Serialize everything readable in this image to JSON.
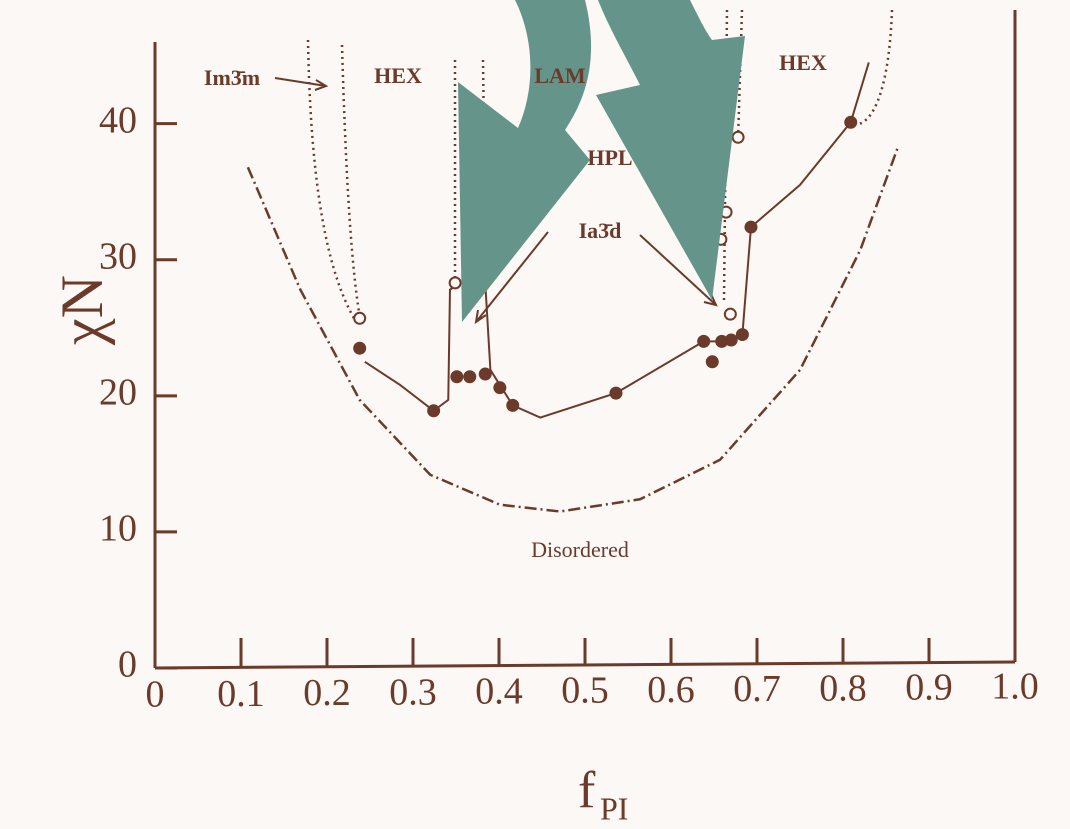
{
  "chart_data": {
    "type": "scatter",
    "ylabel": "χN",
    "xlabel": {
      "main": "f",
      "sub": "PI"
    },
    "xlim": [
      0,
      1
    ],
    "ylim": [
      0,
      46
    ],
    "xticks": [
      0,
      0.1,
      0.2,
      0.3,
      0.4,
      0.5,
      0.6,
      0.7,
      0.8,
      0.9,
      {
        "value": 1,
        "label": "1.0"
      }
    ],
    "yticks": [
      0,
      10,
      20,
      30,
      40
    ],
    "color": "#6b3a2a",
    "series": [
      {
        "style": "dashdot",
        "x": [
          0.108,
          0.169,
          0.238,
          0.32,
          0.401,
          0.471,
          0.564,
          0.657,
          0.75,
          0.82,
          0.864
        ],
        "values": [
          36.8,
          27.8,
          19.7,
          14.2,
          12.0,
          11.5,
          12.4,
          15.3,
          21.9,
          30.7,
          38.3
        ]
      },
      {
        "style": "solid",
        "x": [
          0.244,
          0.285,
          0.324,
          0.341,
          0.343,
          0.355,
          0.384,
          0.39,
          0.416,
          0.448,
          0.536,
          0.638,
          0.659,
          0.683,
          0.693,
          0.75,
          0.809,
          0.83
        ],
        "values": [
          22.5,
          20.8,
          18.9,
          19.7,
          27.8,
          28.3,
          28.3,
          21.9,
          19.3,
          18.4,
          20.2,
          24.0,
          24.0,
          24.5,
          32.4,
          35.5,
          40.1,
          44.5
        ]
      },
      {
        "style": "filled",
        "x": [
          0.238,
          0.324,
          0.351,
          0.366,
          0.384,
          0.401,
          0.416,
          0.536,
          0.638,
          0.648,
          0.659,
          0.67,
          0.683,
          0.693,
          0.809
        ],
        "values": [
          23.5,
          18.9,
          21.4,
          21.4,
          21.6,
          20.6,
          19.3,
          20.2,
          24.0,
          22.5,
          24.0,
          24.1,
          24.5,
          32.4,
          40.1
        ]
      },
      {
        "style": "open",
        "x": [
          0.238,
          0.349,
          0.658,
          0.664,
          0.669,
          0.678
        ],
        "values": [
          25.7,
          28.3,
          31.5,
          33.5,
          26.0,
          39.0
        ]
      }
    ],
    "annotations": [
      "Im3̄m",
      "HEX",
      "LAM",
      "HPL",
      "Ia3̄d",
      "HEX",
      "Disordered"
    ]
  }
}
